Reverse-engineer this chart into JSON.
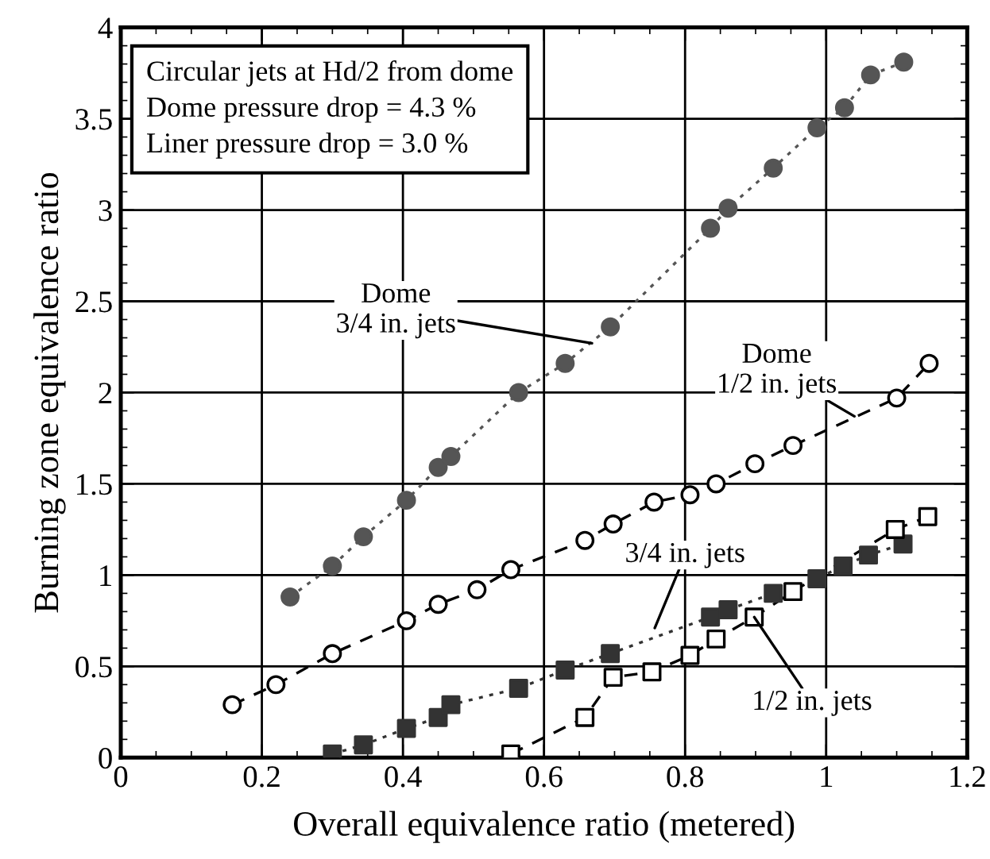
{
  "chart_data": {
    "type": "line",
    "xlabel": "Overall equivalence ratio (metered)",
    "ylabel": "Burning zone equivalence ratio",
    "xlim": [
      0,
      1.2
    ],
    "ylim": [
      0,
      4
    ],
    "xticks": [
      0,
      0.2,
      0.4,
      0.6,
      0.8,
      1,
      1.2
    ],
    "yticks": [
      0,
      0.5,
      1,
      1.5,
      2,
      2.5,
      3,
      3.5,
      4
    ],
    "grid": true,
    "legend": false,
    "series": [
      {
        "color": "#555555",
        "marker": "circle",
        "line_style": "dotted",
        "x": [
          0.24,
          0.3,
          0.344,
          0.405,
          0.45,
          0.468,
          0.564,
          0.63,
          0.694,
          0.836,
          0.861,
          0.925,
          0.987,
          1.026,
          1.063,
          1.11
        ],
        "values": [
          0.88,
          1.05,
          1.21,
          1.41,
          1.59,
          1.65,
          2.0,
          2.16,
          2.36,
          2.9,
          3.01,
          3.23,
          3.45,
          3.56,
          3.74,
          3.81
        ]
      },
      {
        "color": "#ffffff",
        "marker": "circle",
        "line_style": "dashed",
        "x": [
          0.158,
          0.22,
          0.3,
          0.405,
          0.45,
          0.505,
          0.553,
          0.658,
          0.698,
          0.756,
          0.807,
          0.844,
          0.899,
          0.953,
          1.1,
          1.146
        ],
        "values": [
          0.29,
          0.4,
          0.57,
          0.75,
          0.84,
          0.92,
          1.03,
          1.19,
          1.28,
          1.4,
          1.44,
          1.5,
          1.61,
          1.71,
          1.97,
          2.16
        ]
      },
      {
        "color": "#333333",
        "marker": "square",
        "line_style": "dotted",
        "x": [
          0.3,
          0.344,
          0.405,
          0.45,
          0.468,
          0.564,
          0.63,
          0.694,
          0.836,
          0.861,
          0.925,
          0.987,
          1.024,
          1.06,
          1.109
        ],
        "values": [
          0.02,
          0.07,
          0.16,
          0.22,
          0.29,
          0.38,
          0.48,
          0.57,
          0.77,
          0.81,
          0.9,
          0.98,
          1.05,
          1.11,
          1.17
        ]
      },
      {
        "color": "#ffffff",
        "marker": "square",
        "line_style": "dashed",
        "x": [
          0.553,
          0.658,
          0.698,
          0.753,
          0.807,
          0.844,
          0.898,
          0.953,
          1.098,
          1.144
        ],
        "values": [
          0.02,
          0.22,
          0.44,
          0.47,
          0.56,
          0.65,
          0.77,
          0.91,
          1.25,
          1.32
        ]
      }
    ],
    "annotations": [
      "Circular jets at Hd/2 from dome\nDome pressure drop = 4.3 %\nLiner pressure drop = 3.0 %",
      {
        "text": "Dome\n3/4 in. jets",
        "x": 0.668,
        "y": 2.27
      },
      "Dome\n1/2 in. jets",
      "3/4 in. jets",
      {
        "text": "1/2 in. jets",
        "x": 0.898,
        "y": 0.77
      }
    ]
  }
}
